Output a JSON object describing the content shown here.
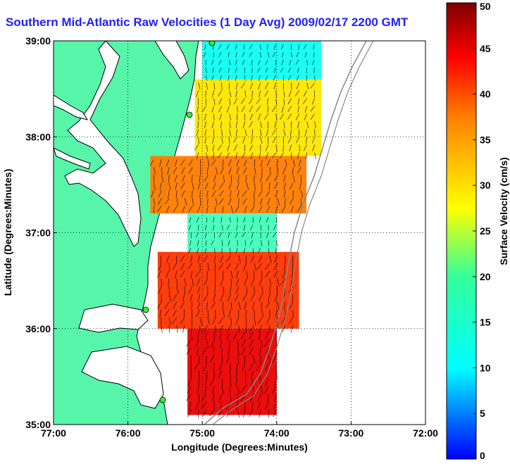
{
  "chart_data": {
    "type": "heatmap",
    "title": "Southern Mid-Atlantic Raw Velocities (1 Day Avg) 2009/02/17 2200 GMT",
    "xlabel": "Longitude (Degrees:Minutes)",
    "ylabel": "Latitude (Degrees:Minutes)",
    "colorbar_label": "Surface Velocity (cm/s)",
    "xlim": [
      -77,
      -72
    ],
    "ylim": [
      35,
      39
    ],
    "clim": [
      0,
      50
    ],
    "x_ticks": [
      {
        "value": -77,
        "label": "77:00"
      },
      {
        "value": -76,
        "label": "76:00"
      },
      {
        "value": -75,
        "label": "75:00"
      },
      {
        "value": -74,
        "label": "74:00"
      },
      {
        "value": -73,
        "label": "73:00"
      },
      {
        "value": -72,
        "label": "72:00"
      }
    ],
    "y_ticks": [
      {
        "value": 39,
        "label": "39:00"
      },
      {
        "value": 38,
        "label": "38:00"
      },
      {
        "value": 37,
        "label": "37:00"
      },
      {
        "value": 36,
        "label": "36:00"
      },
      {
        "value": 35,
        "label": "35:00"
      }
    ],
    "colorbar_ticks": [
      0,
      5,
      10,
      15,
      20,
      25,
      30,
      35,
      40,
      45,
      50
    ],
    "grid": true,
    "colormap": [
      "#0000ff",
      "#00bfff",
      "#00ffff",
      "#7fff7f",
      "#ffff00",
      "#ff8000",
      "#ff0000",
      "#800000"
    ],
    "land_color": "#57f5a9",
    "coastline_color": "#000000",
    "station_color": "#33ee33",
    "velocity_field": [
      {
        "lat_range": [
          38.6,
          39.0
        ],
        "lon_range": [
          -75.0,
          -73.4
        ],
        "speed": 15
      },
      {
        "lat_range": [
          37.8,
          38.6
        ],
        "lon_range": [
          -75.1,
          -73.4
        ],
        "speed": 30
      },
      {
        "lat_range": [
          37.2,
          37.8
        ],
        "lon_range": [
          -75.7,
          -73.6
        ],
        "speed": 36
      },
      {
        "lat_range": [
          36.8,
          37.2
        ],
        "lon_range": [
          -75.2,
          -74.0
        ],
        "speed": 18
      },
      {
        "lat_range": [
          36.0,
          36.8
        ],
        "lon_range": [
          -75.6,
          -73.7
        ],
        "speed": 40
      },
      {
        "lat_range": [
          35.1,
          36.0
        ],
        "lon_range": [
          -75.2,
          -74.0
        ],
        "speed": 44
      }
    ]
  }
}
